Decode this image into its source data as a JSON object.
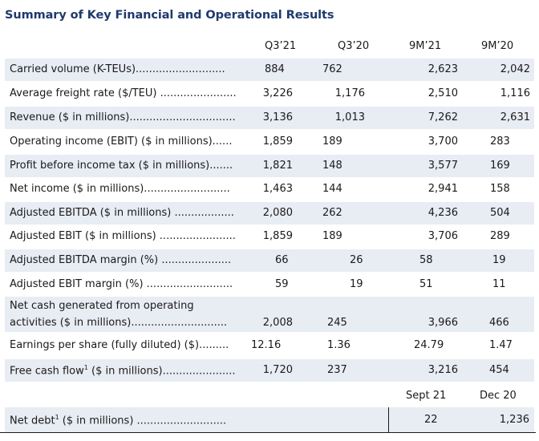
{
  "title": "Summary of Key Financial and Operational Results",
  "headers": [
    "Q3’21",
    "Q3’20",
    "9M’21",
    "9M’20"
  ],
  "rows": [
    {
      "label": "Carried volume (K-TEUs)...........................",
      "v": [
        "884",
        "762",
        "2,623",
        "2,042"
      ]
    },
    {
      "label": "Average freight rate ($/TEU) .......................",
      "v": [
        "3,226",
        "1,176",
        "2,510",
        "1,116"
      ]
    },
    {
      "label": "Revenue ($ in millions)................................",
      "v": [
        "3,136",
        "1,013",
        "7,262",
        "2,631"
      ]
    },
    {
      "label": "Operating income (EBIT) ($ in millions)......",
      "v": [
        "1,859",
        "189",
        "3,700",
        "283"
      ]
    },
    {
      "label": "Profit before income tax ($ in millions).......",
      "v": [
        "1,821",
        "148",
        "3,577",
        "169"
      ]
    },
    {
      "label": "Net income ($ in millions)..........................",
      "v": [
        "1,463",
        "144",
        "2,941",
        "158"
      ]
    },
    {
      "label": "Adjusted EBITDA ($ in millions) ..................",
      "v": [
        "2,080",
        "262",
        "4,236",
        "504"
      ]
    },
    {
      "label": "Adjusted EBIT ($ in millions) .......................",
      "v": [
        "1,859",
        "189",
        "3,706",
        "289"
      ]
    },
    {
      "label": "Adjusted EBITDA margin (%) .....................",
      "v": [
        "66",
        "26",
        "58",
        "19"
      ]
    },
    {
      "label": "Adjusted EBIT margin (%) ..........................",
      "v": [
        "59",
        "19",
        "51",
        "11"
      ]
    }
  ],
  "net_cash": {
    "label_line1": "Net cash generated from operating",
    "label_line2": "activities ($ in millions).............................",
    "v": [
      "2,008",
      "245",
      "3,966",
      "466"
    ]
  },
  "eps": {
    "label": "Earnings per share (fully diluted) ($).........",
    "v": [
      "12.16",
      "1.36",
      "24.79",
      "1.47"
    ]
  },
  "fcf": {
    "label_pre": "Free cash flow",
    "sup": "1",
    "label_post": " ($ in millions)......................",
    "v": [
      "1,720",
      "237",
      "3,216",
      "454"
    ]
  },
  "debt_headers": [
    "Sept 21",
    "Dec 20"
  ],
  "net_debt": {
    "label_pre": "Net debt",
    "sup": "1",
    "label_post": " ($ in millions) ...........................",
    "v": [
      "22",
      "1,236"
    ]
  }
}
